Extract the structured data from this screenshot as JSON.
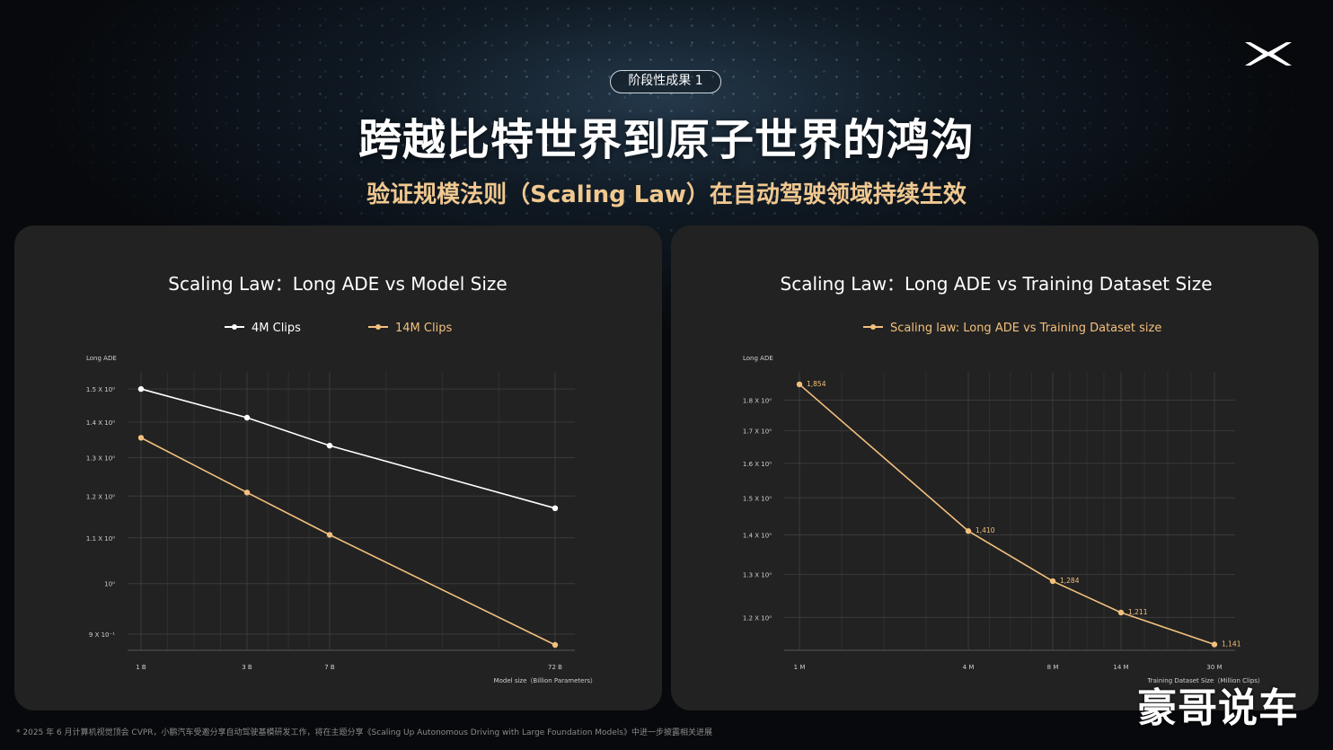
{
  "badge": "阶段性成果 1",
  "title": "跨越比特世界到原子世界的鸿沟",
  "subtitle": "验证规模法则（Scaling Law）在自动驾驶领域持续生效",
  "footnote": "* 2025 年 6 月计算机视觉顶会 CVPR，小鹏汽车受邀分享自动驾驶基模研发工作，将在主题分享《Scaling Up Autonomous Driving with Large Foundation Models》中进一步披露相关进展",
  "watermark": "豪哥说车",
  "colors": {
    "white_series": "#ffffff",
    "orange_series": "#f2c07d",
    "panel": "#222222"
  },
  "chart_data": [
    {
      "type": "line",
      "title": "Scaling Law：Long ADE vs Model Size",
      "ylabel": "Long ADE",
      "xlabel": "Model size（Billion Parameters）",
      "x_scale": "log",
      "y_scale": "log",
      "legend_placement": "top-center",
      "grid": true,
      "x": [
        1,
        3,
        7,
        72
      ],
      "x_tick_labels": [
        "1 B",
        "3 B",
        "7 B",
        "72 B"
      ],
      "y_ticks": [
        0.9,
        1.0,
        1.1,
        1.2,
        1.3,
        1.4,
        1.5
      ],
      "y_tick_labels": [
        "9 X 10⁻¹",
        "10⁰",
        "1.1 X 10⁰",
        "1.2 X 10⁰",
        "1.3 X 10⁰",
        "1.4 X 10⁰",
        "1.5 X 10⁰"
      ],
      "ylim": [
        0.88,
        1.52
      ],
      "series": [
        {
          "name": "4M Clips",
          "color": "#ffffff",
          "values": [
            1.5,
            1.413,
            1.333,
            1.17
          ]
        },
        {
          "name": "14M Clips",
          "color": "#f2c07d",
          "values": [
            1.355,
            1.209,
            1.107,
            0.88
          ]
        }
      ]
    },
    {
      "type": "line",
      "title": "Scaling Law：Long ADE vs Training Dataset Size",
      "ylabel": "Long ADE",
      "xlabel": "Training Dataset Size（Million Clips）",
      "x_scale": "log",
      "y_scale": "log",
      "legend_placement": "top-center",
      "grid": true,
      "x": [
        1,
        4,
        8,
        14,
        30
      ],
      "x_tick_labels": [
        "1 M",
        "4 M",
        "8 M",
        "14 M",
        "30 M"
      ],
      "y_ticks": [
        1.2,
        1.3,
        1.4,
        1.5,
        1.6,
        1.7,
        1.8
      ],
      "y_tick_labels": [
        "1.2 X 10⁰",
        "1.3 X 10⁰",
        "1.4 X 10⁰",
        "1.5 X 10⁰",
        "1.6 X 10⁰",
        "1.7 X 10⁰",
        "1.8 X 10⁰"
      ],
      "ylim": [
        1.14,
        1.86
      ],
      "series": [
        {
          "name": "Scaling law: Long ADE vs Training Dataset size",
          "color": "#f2c07d",
          "values": [
            1.854,
            1.41,
            1.284,
            1.211,
            1.141
          ],
          "data_labels": [
            "1,854",
            "1,410",
            "1,284",
            "1,211",
            "1,141"
          ]
        }
      ]
    }
  ]
}
